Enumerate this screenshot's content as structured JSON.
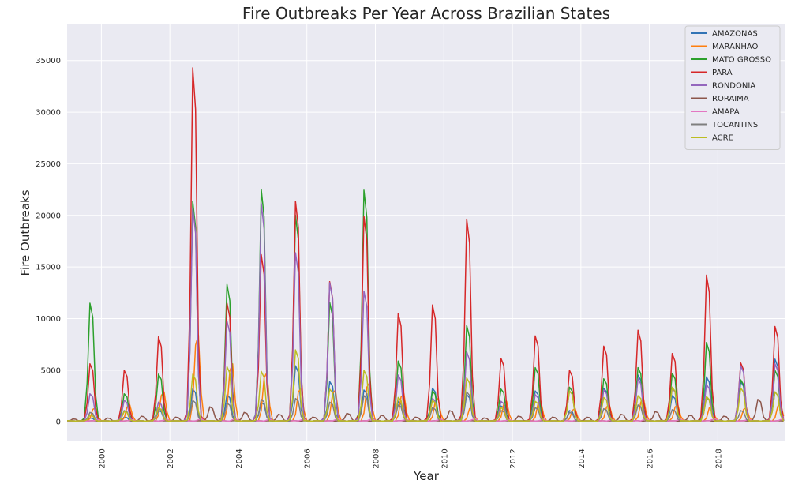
{
  "chart_data": {
    "type": "line",
    "title": "Fire Outbreaks Per Year Across Brazilian States",
    "xlabel": "Year",
    "ylabel": "Fire Outbreaks",
    "xlim": [
      1999.0,
      2019.95
    ],
    "ylim": [
      -1900,
      38500
    ],
    "x_ticks": [
      2000,
      2002,
      2004,
      2006,
      2008,
      2010,
      2012,
      2014,
      2016,
      2018
    ],
    "y_ticks": [
      0,
      5000,
      10000,
      15000,
      20000,
      25000,
      30000,
      35000
    ],
    "grid": true,
    "legend": "top-right",
    "series": [
      {
        "name": "AMAZONAS",
        "color": "#3274b5",
        "peaks": [
          [
            1999.7,
            400
          ],
          [
            2000.7,
            500
          ],
          [
            2001.7,
            1200
          ],
          [
            2002.7,
            3500
          ],
          [
            2003.7,
            2900
          ],
          [
            2004.7,
            2100
          ],
          [
            2005.7,
            6000
          ],
          [
            2006.7,
            4300
          ],
          [
            2007.7,
            3400
          ],
          [
            2008.7,
            2200
          ],
          [
            2009.7,
            3600
          ],
          [
            2010.7,
            2900
          ],
          [
            2011.7,
            1700
          ],
          [
            2012.7,
            3300
          ],
          [
            2013.7,
            1200
          ],
          [
            2014.7,
            3600
          ],
          [
            2015.7,
            5000
          ],
          [
            2016.7,
            2800
          ],
          [
            2017.7,
            4800
          ],
          [
            2018.7,
            4300
          ],
          [
            2019.7,
            6700
          ]
        ]
      },
      {
        "name": "MARANHAO",
        "color": "#ff7f0e",
        "peaks": [
          [
            1999.8,
            1500
          ],
          [
            2000.8,
            1800
          ],
          [
            2001.8,
            3200
          ],
          [
            2002.8,
            9300
          ],
          [
            2003.8,
            6200
          ],
          [
            2004.8,
            5300
          ],
          [
            2005.8,
            3600
          ],
          [
            2006.8,
            3400
          ],
          [
            2007.8,
            4200
          ],
          [
            2008.8,
            3000
          ],
          [
            2009.8,
            2500
          ],
          [
            2010.8,
            1600
          ],
          [
            2011.8,
            2200
          ],
          [
            2012.8,
            2200
          ],
          [
            2013.8,
            1400
          ],
          [
            2014.8,
            1800
          ],
          [
            2015.8,
            2400
          ],
          [
            2016.8,
            1800
          ],
          [
            2017.8,
            1700
          ],
          [
            2018.8,
            1500
          ],
          [
            2019.8,
            1900
          ]
        ]
      },
      {
        "name": "MATO GROSSO",
        "color": "#2ca02c",
        "peaks": [
          [
            1999.7,
            12700
          ],
          [
            2000.7,
            3000
          ],
          [
            2001.7,
            5100
          ],
          [
            2002.7,
            23600
          ],
          [
            2003.7,
            14700
          ],
          [
            2004.7,
            24900
          ],
          [
            2005.7,
            22100
          ],
          [
            2006.7,
            12800
          ],
          [
            2007.7,
            24800
          ],
          [
            2008.7,
            6500
          ],
          [
            2009.7,
            3300
          ],
          [
            2010.7,
            10300
          ],
          [
            2011.7,
            3500
          ],
          [
            2012.7,
            5800
          ],
          [
            2013.7,
            3700
          ],
          [
            2014.7,
            4600
          ],
          [
            2015.7,
            5800
          ],
          [
            2016.7,
            5200
          ],
          [
            2017.7,
            8500
          ],
          [
            2018.7,
            4500
          ],
          [
            2019.7,
            5500
          ]
        ]
      },
      {
        "name": "PARA",
        "color": "#d62728",
        "peaks": [
          [
            1999.7,
            6200
          ],
          [
            2000.7,
            5500
          ],
          [
            2001.7,
            9100
          ],
          [
            2002.7,
            37900
          ],
          [
            2003.7,
            12700
          ],
          [
            2004.7,
            17900
          ],
          [
            2005.7,
            23600
          ],
          [
            2006.7,
            15000
          ],
          [
            2007.7,
            22000
          ],
          [
            2008.7,
            11600
          ],
          [
            2009.7,
            12500
          ],
          [
            2010.7,
            21700
          ],
          [
            2011.7,
            6800
          ],
          [
            2012.7,
            9200
          ],
          [
            2013.7,
            5500
          ],
          [
            2014.7,
            8100
          ],
          [
            2015.7,
            9800
          ],
          [
            2016.7,
            7300
          ],
          [
            2017.7,
            15700
          ],
          [
            2018.7,
            6300
          ],
          [
            2019.7,
            10200
          ]
        ]
      },
      {
        "name": "RONDONIA",
        "color": "#9467bd",
        "peaks": [
          [
            1999.7,
            3000
          ],
          [
            2000.7,
            2300
          ],
          [
            2001.7,
            2100
          ],
          [
            2002.7,
            22900
          ],
          [
            2003.7,
            10800
          ],
          [
            2004.7,
            23400
          ],
          [
            2005.7,
            18100
          ],
          [
            2006.7,
            14900
          ],
          [
            2007.7,
            14000
          ],
          [
            2008.7,
            5000
          ],
          [
            2009.7,
            2500
          ],
          [
            2010.7,
            7500
          ],
          [
            2011.7,
            2200
          ],
          [
            2012.7,
            2900
          ],
          [
            2013.7,
            3300
          ],
          [
            2014.7,
            3400
          ],
          [
            2015.7,
            4600
          ],
          [
            2016.7,
            3600
          ],
          [
            2017.7,
            4000
          ],
          [
            2018.7,
            6000
          ],
          [
            2019.7,
            6200
          ]
        ]
      },
      {
        "name": "RORAIMA",
        "color": "#8c564b",
        "peaks": [
          [
            1999.2,
            300
          ],
          [
            2000.2,
            400
          ],
          [
            2001.2,
            600
          ],
          [
            2002.2,
            500
          ],
          [
            2003.2,
            1600
          ],
          [
            2004.2,
            1000
          ],
          [
            2005.2,
            800
          ],
          [
            2006.2,
            500
          ],
          [
            2007.2,
            900
          ],
          [
            2008.2,
            700
          ],
          [
            2009.2,
            500
          ],
          [
            2010.2,
            1200
          ],
          [
            2011.2,
            400
          ],
          [
            2012.2,
            600
          ],
          [
            2013.2,
            500
          ],
          [
            2014.2,
            500
          ],
          [
            2015.2,
            800
          ],
          [
            2016.2,
            1100
          ],
          [
            2017.2,
            700
          ],
          [
            2018.2,
            600
          ],
          [
            2019.2,
            2400
          ]
        ]
      },
      {
        "name": "AMAPA",
        "color": "#e377c2",
        "peaks": [
          [
            1999.9,
            200
          ],
          [
            2000.9,
            200
          ],
          [
            2001.9,
            250
          ],
          [
            2002.9,
            300
          ],
          [
            2003.9,
            300
          ],
          [
            2004.9,
            250
          ],
          [
            2005.9,
            250
          ],
          [
            2006.9,
            300
          ],
          [
            2007.9,
            300
          ],
          [
            2008.9,
            250
          ],
          [
            2009.9,
            250
          ],
          [
            2010.9,
            300
          ],
          [
            2011.9,
            200
          ],
          [
            2012.9,
            250
          ],
          [
            2013.9,
            200
          ],
          [
            2014.9,
            200
          ],
          [
            2015.9,
            300
          ],
          [
            2016.9,
            250
          ],
          [
            2017.9,
            300
          ],
          [
            2018.9,
            250
          ],
          [
            2019.9,
            300
          ]
        ]
      },
      {
        "name": "TOCANTINS",
        "color": "#7f7f7f",
        "peaks": [
          [
            1999.7,
            1000
          ],
          [
            2000.7,
            1200
          ],
          [
            2001.7,
            1400
          ],
          [
            2002.7,
            2300
          ],
          [
            2003.7,
            2000
          ],
          [
            2004.7,
            2400
          ],
          [
            2005.7,
            2500
          ],
          [
            2006.7,
            2100
          ],
          [
            2007.7,
            2800
          ],
          [
            2008.7,
            1800
          ],
          [
            2009.7,
            1500
          ],
          [
            2010.7,
            3200
          ],
          [
            2011.7,
            1200
          ],
          [
            2012.7,
            1500
          ],
          [
            2013.7,
            1000
          ],
          [
            2014.7,
            1400
          ],
          [
            2015.7,
            1800
          ],
          [
            2016.7,
            1300
          ],
          [
            2017.7,
            2600
          ],
          [
            2018.7,
            1200
          ],
          [
            2019.7,
            3200
          ]
        ]
      },
      {
        "name": "ACRE",
        "color": "#bcbd22",
        "peaks": [
          [
            1999.7,
            700
          ],
          [
            2000.7,
            1100
          ],
          [
            2001.7,
            1500
          ],
          [
            2002.7,
            5100
          ],
          [
            2003.7,
            5900
          ],
          [
            2004.7,
            5400
          ],
          [
            2005.7,
            7700
          ],
          [
            2006.7,
            3500
          ],
          [
            2007.7,
            5500
          ],
          [
            2008.7,
            2600
          ],
          [
            2009.7,
            2300
          ],
          [
            2010.7,
            4700
          ],
          [
            2011.7,
            1500
          ],
          [
            2012.7,
            2200
          ],
          [
            2013.7,
            3300
          ],
          [
            2014.7,
            2600
          ],
          [
            2015.7,
            2800
          ],
          [
            2016.7,
            3700
          ],
          [
            2017.7,
            2700
          ],
          [
            2018.7,
            3600
          ],
          [
            2019.7,
            3200
          ]
        ]
      }
    ]
  }
}
